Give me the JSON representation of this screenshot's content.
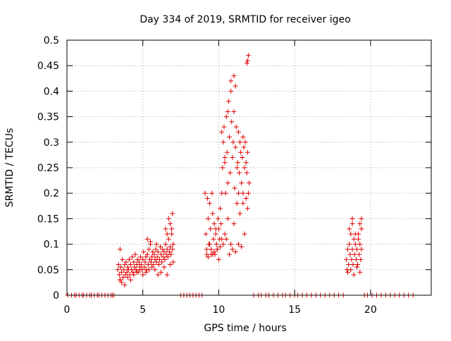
{
  "chart_data": {
    "type": "scatter",
    "title": "Day 334 of 2019, SRMTID for receiver igeo",
    "xlabel": "GPS time / hours",
    "ylabel": "SRMTID / TECUs",
    "xlim": [
      0,
      24
    ],
    "ylim": [
      0,
      0.5
    ],
    "xticks": [
      0,
      5,
      10,
      15,
      20
    ],
    "xtick_labels": [
      "0",
      "5",
      "10",
      "15",
      "20"
    ],
    "yticks": [
      0,
      0.05,
      0.1,
      0.15,
      0.2,
      0.25,
      0.3,
      0.35,
      0.4,
      0.45,
      0.5
    ],
    "ytick_labels": [
      "0",
      "0.05",
      "0.1",
      "0.15",
      "0.2",
      "0.25",
      "0.3",
      "0.35",
      "0.4",
      "0.45",
      "0.5"
    ],
    "grid": true,
    "marker": "+",
    "color": "#e00000",
    "series": [
      {
        "name": "SRMTID",
        "x": [
          0.05,
          0.3,
          0.5,
          0.6,
          0.8,
          1.0,
          1.1,
          1.3,
          1.5,
          1.6,
          1.8,
          2.0,
          2.1,
          2.3,
          2.5,
          2.7,
          2.9,
          3.0,
          3.1,
          3.35,
          3.4,
          3.45,
          3.5,
          3.5,
          3.55,
          3.6,
          3.65,
          3.7,
          3.75,
          3.8,
          3.85,
          3.9,
          3.95,
          4.0,
          4.05,
          4.1,
          4.15,
          4.2,
          4.25,
          4.3,
          4.35,
          4.4,
          4.45,
          4.5,
          4.55,
          4.6,
          4.65,
          4.7,
          4.75,
          4.8,
          4.85,
          4.9,
          4.95,
          5.0,
          5.05,
          5.1,
          5.15,
          5.2,
          5.25,
          5.3,
          5.35,
          5.4,
          5.45,
          5.5,
          5.55,
          5.6,
          5.65,
          5.7,
          5.75,
          5.8,
          5.85,
          5.9,
          5.95,
          6.0,
          6.05,
          6.1,
          6.15,
          6.2,
          6.25,
          6.3,
          6.35,
          6.4,
          6.45,
          6.5,
          6.55,
          6.6,
          6.65,
          6.7,
          6.75,
          6.8,
          6.85,
          6.9,
          6.95,
          7.0,
          3.5,
          3.6,
          3.8,
          4.0,
          4.2,
          4.4,
          4.6,
          4.8,
          5.0,
          5.2,
          5.4,
          5.6,
          5.8,
          6.0,
          6.2,
          6.4,
          6.6,
          6.8,
          7.0,
          6.9,
          6.95,
          6.8,
          6.7,
          6.6,
          6.5,
          5.9,
          5.5,
          5.3,
          7.5,
          7.7,
          7.9,
          8.1,
          8.3,
          8.5,
          8.7,
          8.9,
          9.1,
          9.15,
          9.2,
          9.25,
          9.3,
          9.35,
          9.4,
          9.45,
          9.5,
          9.55,
          9.6,
          9.65,
          9.7,
          9.75,
          9.8,
          9.85,
          9.9,
          9.95,
          10.0,
          10.05,
          10.1,
          10.15,
          10.2,
          10.25,
          10.3,
          10.35,
          10.4,
          10.45,
          10.5,
          10.55,
          10.6,
          10.65,
          10.7,
          10.75,
          10.8,
          10.85,
          10.9,
          10.95,
          11.0,
          11.05,
          11.1,
          11.15,
          11.2,
          11.25,
          11.3,
          11.35,
          11.4,
          11.45,
          11.5,
          11.55,
          11.6,
          11.65,
          11.7,
          11.75,
          11.8,
          11.85,
          11.9,
          11.95,
          12.0,
          9.2,
          9.4,
          9.6,
          9.8,
          10.0,
          10.2,
          10.4,
          10.6,
          10.8,
          11.0,
          11.2,
          11.4,
          11.6,
          11.8,
          9.3,
          9.5,
          9.7,
          9.9,
          10.1,
          10.3,
          10.5,
          10.7,
          10.9,
          11.1,
          11.3,
          11.5,
          11.7,
          11.9,
          10.8,
          11.0,
          11.1,
          11.9,
          11.95,
          11.85,
          10.6,
          10.2,
          10.4,
          11.3,
          11.6,
          12.3,
          12.6,
          12.8,
          13.1,
          13.3,
          13.6,
          13.9,
          14.2,
          14.4,
          14.7,
          15.0,
          15.2,
          15.5,
          15.8,
          16.1,
          16.4,
          16.7,
          17.0,
          17.3,
          17.6,
          17.9,
          18.2,
          18.4,
          18.45,
          18.5,
          18.55,
          18.6,
          18.65,
          18.7,
          18.75,
          18.8,
          18.85,
          18.9,
          18.95,
          19.0,
          19.05,
          19.1,
          19.15,
          19.2,
          19.25,
          19.3,
          19.35,
          19.4,
          18.5,
          18.7,
          18.9,
          19.1,
          19.3,
          18.6,
          18.8,
          19.0,
          19.2,
          19.4,
          18.8,
          19.3,
          19.4,
          19.6,
          19.8,
          20.1,
          20.4,
          20.7,
          21.0,
          21.3,
          21.6,
          21.9,
          22.2,
          22.5,
          22.8
        ],
        "y": [
          0,
          0,
          0,
          0,
          0,
          0,
          0,
          0,
          0,
          0,
          0,
          0,
          0,
          0,
          0,
          0,
          0,
          0,
          0,
          0.05,
          0.06,
          0.04,
          0.09,
          0.03,
          0.055,
          0.045,
          0.07,
          0.035,
          0.05,
          0.06,
          0.04,
          0.065,
          0.045,
          0.055,
          0.05,
          0.07,
          0.04,
          0.06,
          0.05,
          0.075,
          0.045,
          0.065,
          0.055,
          0.08,
          0.05,
          0.06,
          0.07,
          0.045,
          0.065,
          0.055,
          0.075,
          0.06,
          0.05,
          0.07,
          0.085,
          0.055,
          0.065,
          0.075,
          0.05,
          0.08,
          0.06,
          0.09,
          0.07,
          0.1,
          0.065,
          0.075,
          0.085,
          0.06,
          0.08,
          0.07,
          0.09,
          0.065,
          0.075,
          0.085,
          0.06,
          0.07,
          0.095,
          0.08,
          0.065,
          0.09,
          0.075,
          0.085,
          0.07,
          0.1,
          0.08,
          0.09,
          0.075,
          0.11,
          0.085,
          0.095,
          0.08,
          0.12,
          0.09,
          0.1,
          0.03,
          0.025,
          0.02,
          0.035,
          0.03,
          0.04,
          0.045,
          0.05,
          0.04,
          0.045,
          0.05,
          0.055,
          0.05,
          0.04,
          0.045,
          0.055,
          0.04,
          0.06,
          0.065,
          0.13,
          0.16,
          0.14,
          0.15,
          0.12,
          0.13,
          0.1,
          0.105,
          0.11,
          0,
          0,
          0,
          0,
          0,
          0,
          0,
          0,
          0.2,
          0.12,
          0.08,
          0.19,
          0.15,
          0.1,
          0.18,
          0.13,
          0.09,
          0.2,
          0.16,
          0.11,
          0.14,
          0.08,
          0.12,
          0.1,
          0.09,
          0.15,
          0.13,
          0.11,
          0.17,
          0.14,
          0.2,
          0.25,
          0.3,
          0.33,
          0.26,
          0.2,
          0.35,
          0.28,
          0.22,
          0.38,
          0.31,
          0.24,
          0.4,
          0.34,
          0.27,
          0.3,
          0.36,
          0.21,
          0.29,
          0.33,
          0.25,
          0.26,
          0.32,
          0.24,
          0.3,
          0.28,
          0.22,
          0.27,
          0.31,
          0.29,
          0.25,
          0.3,
          0.26,
          0.24,
          0.28,
          0.2,
          0.22,
          0.09,
          0.1,
          0.08,
          0.13,
          0.07,
          0.11,
          0.12,
          0.15,
          0.1,
          0.14,
          0.18,
          0.16,
          0.2,
          0.19,
          0.075,
          0.08,
          0.085,
          0.09,
          0.095,
          0.1,
          0.11,
          0.08,
          0.09,
          0.085,
          0.1,
          0.095,
          0.12,
          0.17,
          0.42,
          0.43,
          0.41,
          0.46,
          0.47,
          0.455,
          0.36,
          0.32,
          0.27,
          0.2,
          0.18,
          0,
          0,
          0,
          0,
          0,
          0,
          0,
          0,
          0,
          0,
          0,
          0,
          0,
          0,
          0,
          0,
          0,
          0,
          0,
          0,
          0,
          0,
          0.07,
          0.05,
          0.09,
          0.06,
          0.1,
          0.08,
          0.12,
          0.07,
          0.09,
          0.06,
          0.11,
          0.08,
          0.1,
          0.07,
          0.09,
          0.06,
          0.12,
          0.08,
          0.1,
          0.07,
          0.09,
          0.045,
          0.05,
          0.04,
          0.055,
          0.045,
          0.13,
          0.14,
          0.12,
          0.11,
          0.15,
          0.15,
          0.14,
          0.13,
          0,
          0,
          0,
          0,
          0,
          0,
          0,
          0,
          0,
          0,
          0,
          0
        ]
      }
    ]
  }
}
